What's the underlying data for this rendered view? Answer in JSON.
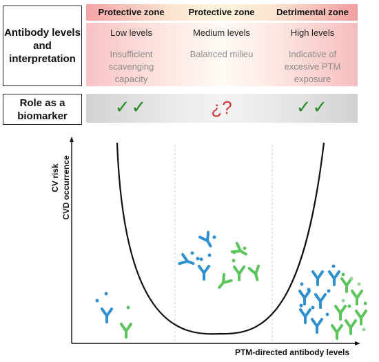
{
  "table": {
    "row1_label": "Antibody levels and interpretation",
    "row2_label": "Role as a biomarker",
    "columns": [
      {
        "zone": "Protective zone",
        "level": "Low levels",
        "description": "Insufficient scavenging capacity",
        "biomarker": "✓✓"
      },
      {
        "zone": "Protective zone",
        "level": "Medium levels",
        "description": "Balanced milieu",
        "biomarker": "¿?"
      },
      {
        "zone": "Detrimental zone",
        "level": "High levels",
        "description": "Indicative of excesive PTM exposure",
        "biomarker": "✓✓"
      }
    ]
  },
  "plot": {
    "y_label_1": "CV risk",
    "y_label_2": "CVD occurrence",
    "x_label": "PTM-directed antibody levels"
  },
  "colors": {
    "antibody_blue": "#2f8fcf",
    "antibody_green": "#5cc45c",
    "check_green": "#2a8a2a",
    "question_red": "#d23a3a"
  }
}
